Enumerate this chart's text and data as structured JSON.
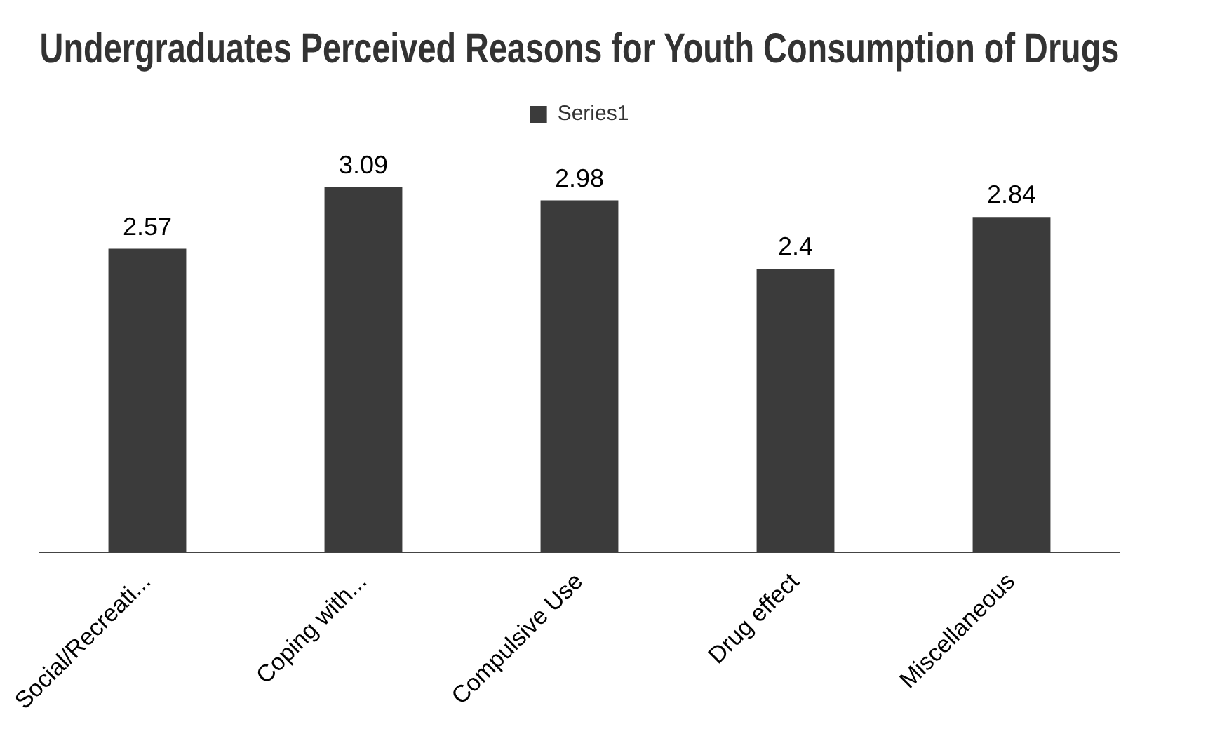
{
  "chart_data": {
    "type": "bar",
    "title": "Undergraduates Perceived Reasons for Youth Consumption of Drugs",
    "categories": [
      "Social/Recreati...",
      "Coping with...",
      "Compulsive Use",
      "Drug effect",
      "Miscellaneous"
    ],
    "series": [
      {
        "name": "Series1",
        "color": "#3b3b3b",
        "values": [
          2.57,
          3.09,
          2.98,
          2.4,
          2.84
        ]
      }
    ],
    "data_labels": true,
    "legend": "top",
    "grid": false
  }
}
